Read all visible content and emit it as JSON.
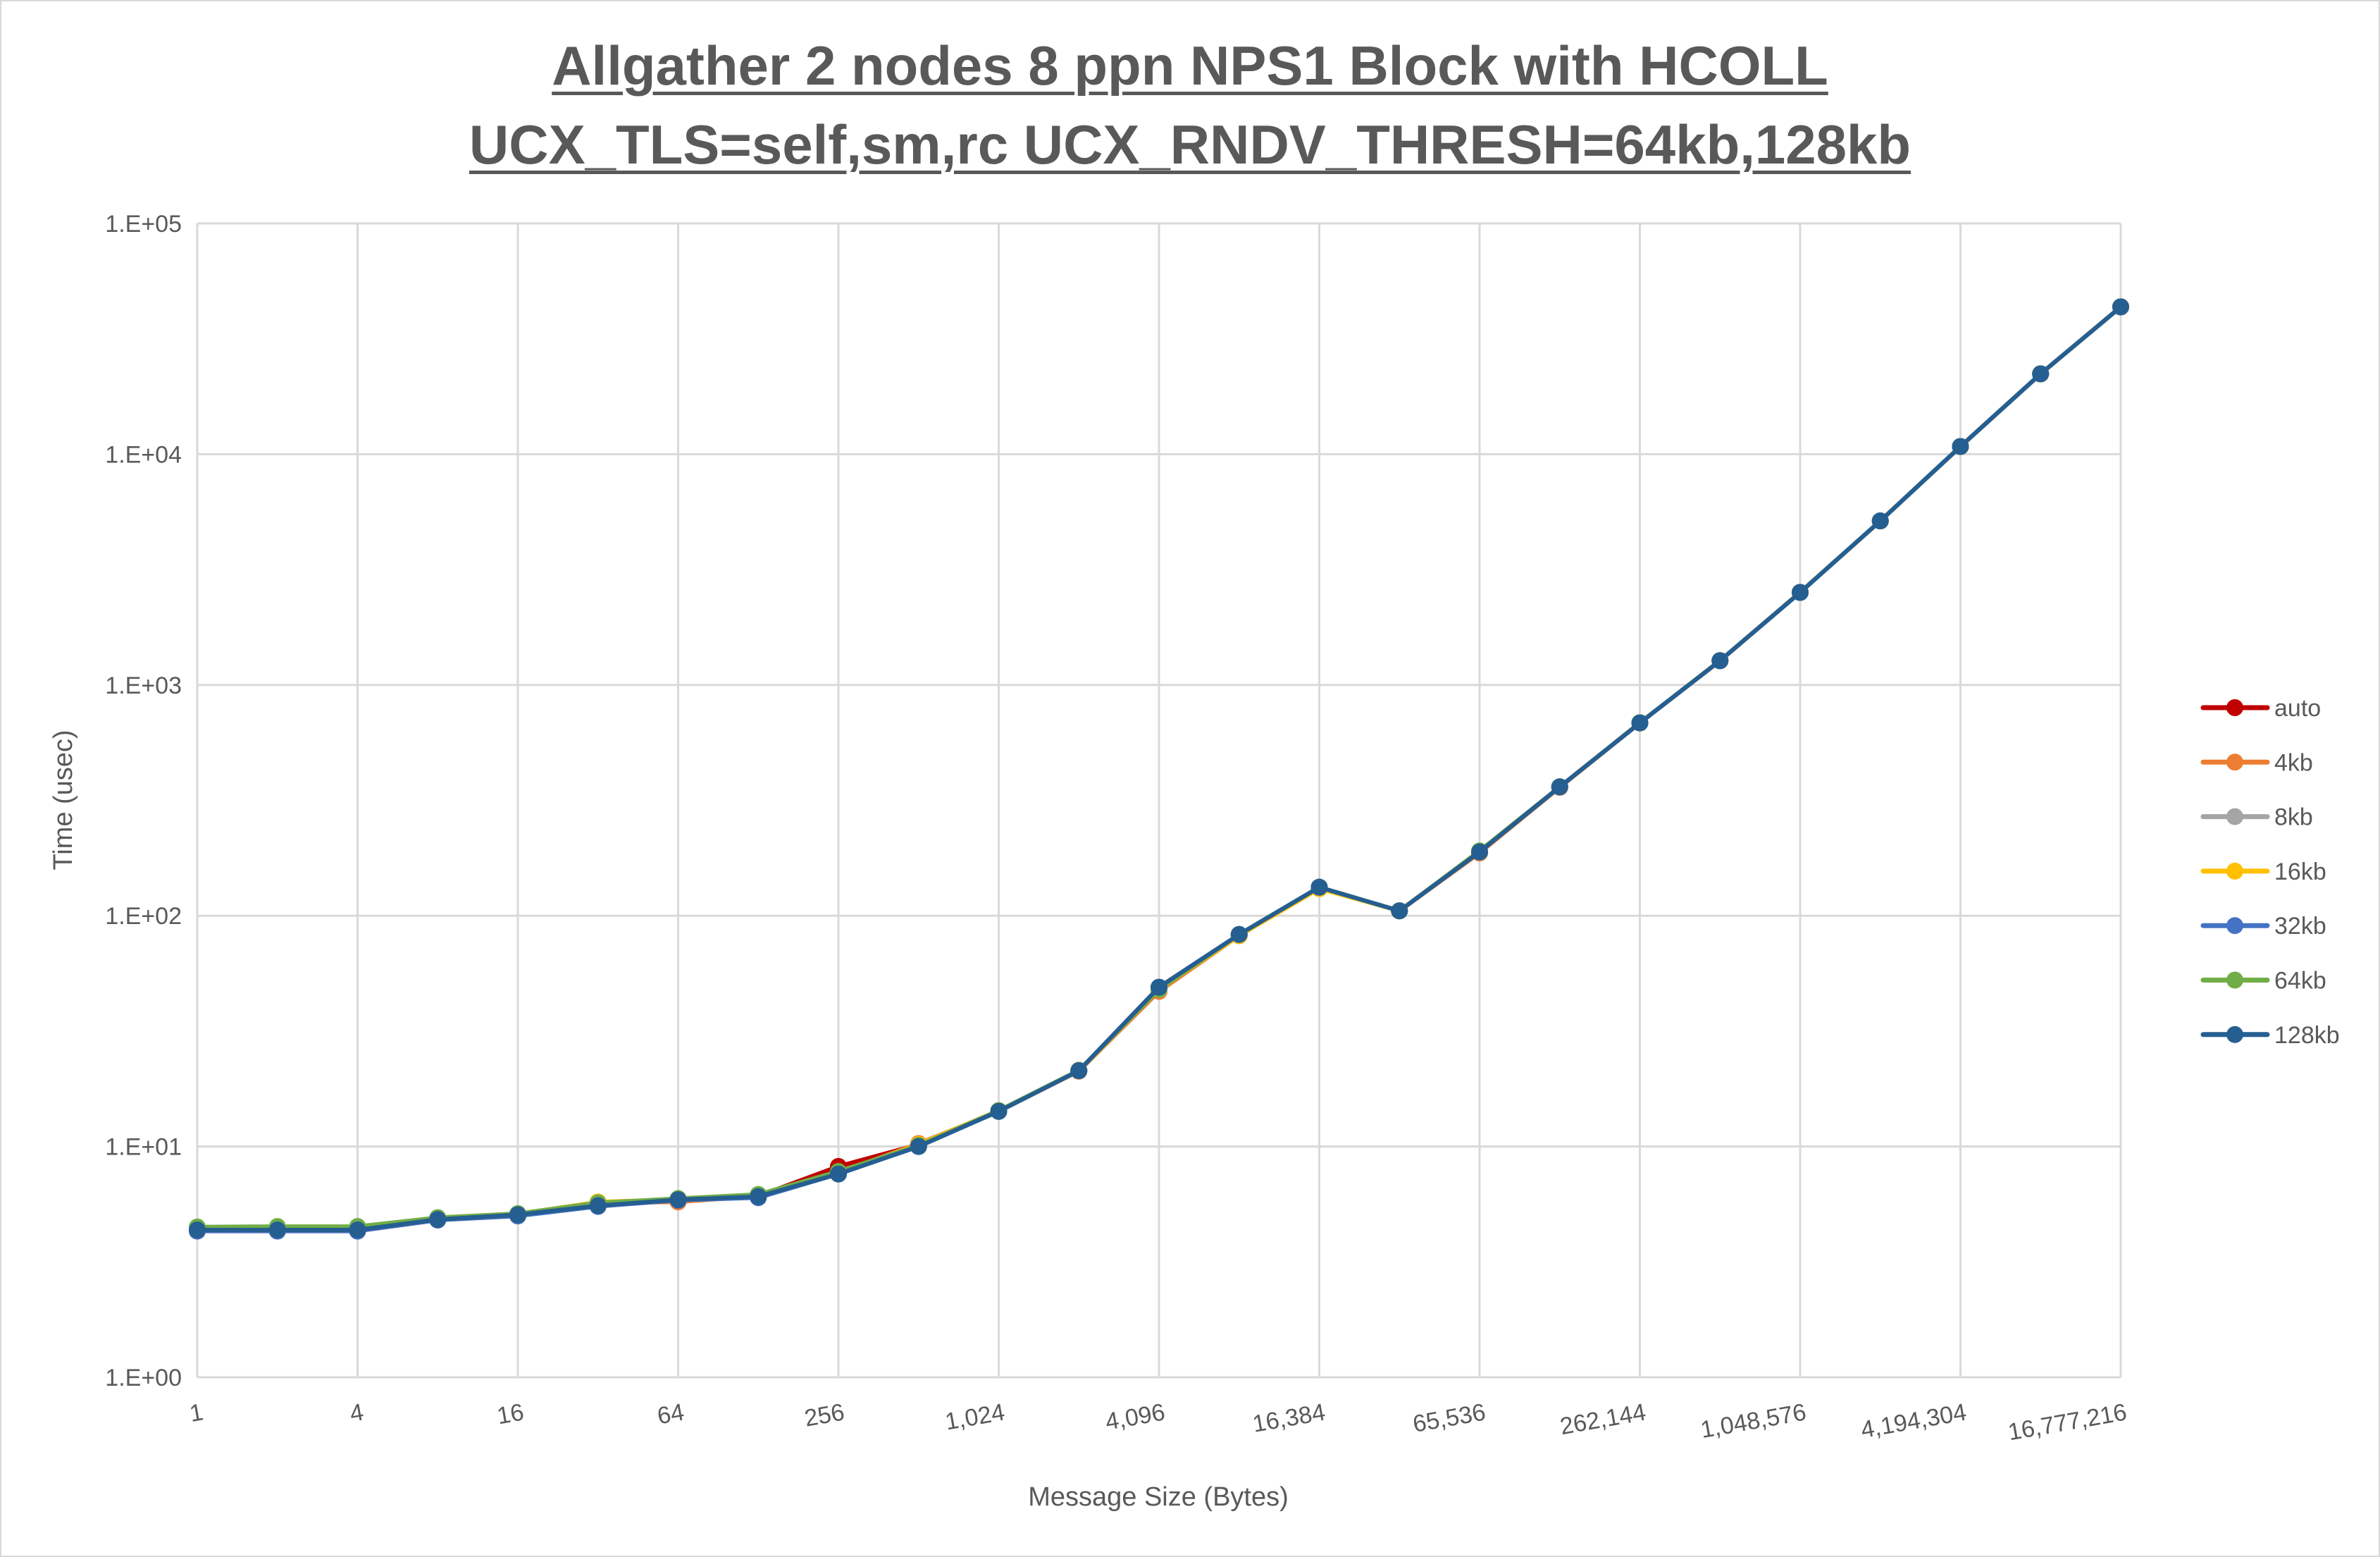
{
  "chart_data": {
    "type": "line",
    "title": [
      "Allgather 2 nodes 8 ppn NPS1 Block with HCOLL",
      "UCX_TLS=self,sm,rc UCX_RNDV_THRESH=64kb,128kb"
    ],
    "xlabel": "Message Size (Bytes)",
    "ylabel": "Time (usec)",
    "x_scale": "log2",
    "y_scale": "log10",
    "ylim": [
      1,
      100000
    ],
    "grid": true,
    "legend_position": "right",
    "x": [
      1,
      2,
      4,
      8,
      16,
      32,
      64,
      128,
      256,
      512,
      1024,
      2048,
      4096,
      8192,
      16384,
      32768,
      65536,
      131072,
      262144,
      524288,
      1048576,
      2097152,
      4194304,
      8388608,
      16777216
    ],
    "x_tick_labels": [
      "1",
      "4",
      "16",
      "64",
      "256",
      "1,024",
      "4,096",
      "16,384",
      "65,536",
      "262,144",
      "1,048,576",
      "4,194,304",
      "16,777,216"
    ],
    "y_tick_labels": [
      "1.E+00",
      "1.E+01",
      "1.E+02",
      "1.E+03",
      "1.E+04",
      "1.E+05"
    ],
    "series": [
      {
        "name": "auto",
        "color": "#c00000",
        "values": [
          4.35,
          4.35,
          4.36,
          4.85,
          5.05,
          5.6,
          5.85,
          6.1,
          8.2,
          10.2,
          14.3,
          21.3,
          48,
          82,
          132,
          105,
          188,
          360,
          685,
          1275,
          2520,
          5140,
          10800,
          22300,
          43500
        ]
      },
      {
        "name": "4kb",
        "color": "#ed7d31",
        "values": [
          4.3,
          4.3,
          4.3,
          4.8,
          5.0,
          5.7,
          5.75,
          6.1,
          7.7,
          10.3,
          14.2,
          21.2,
          47,
          82,
          132,
          105,
          187,
          360,
          684,
          1272,
          2518,
          5135,
          10790,
          22280,
          43480
        ]
      },
      {
        "name": "8kb",
        "color": "#a5a5a5",
        "values": [
          4.4,
          4.4,
          4.42,
          4.88,
          5.05,
          5.65,
          5.85,
          6.1,
          7.7,
          10.1,
          14.2,
          21.3,
          48,
          83,
          133,
          105,
          189,
          361,
          685,
          1274,
          2518,
          5140,
          10800,
          22300,
          43500
        ]
      },
      {
        "name": "16kb",
        "color": "#ffc000",
        "values": [
          4.45,
          4.45,
          4.45,
          4.9,
          5.1,
          5.75,
          5.9,
          6.15,
          7.7,
          10.2,
          14.3,
          21.3,
          48,
          82,
          131,
          105,
          190,
          362,
          686,
          1275,
          2519,
          5141,
          10801,
          22301,
          43501
        ]
      },
      {
        "name": "32kb",
        "color": "#4472c4",
        "values": [
          4.3,
          4.3,
          4.3,
          4.8,
          5.0,
          5.5,
          5.85,
          6.0,
          7.6,
          10.0,
          14.2,
          21.3,
          49,
          83,
          133,
          105,
          189,
          362,
          685,
          1274,
          2518,
          5140,
          10800,
          22300,
          43500
        ]
      },
      {
        "name": "64kb",
        "color": "#70ad47",
        "values": [
          4.48,
          4.5,
          4.5,
          4.92,
          5.12,
          5.7,
          5.95,
          6.2,
          7.8,
          10.1,
          14.3,
          21.4,
          48,
          83,
          133,
          105,
          191,
          362,
          686,
          1275,
          2519,
          5141,
          10801,
          22301,
          43501
        ]
      },
      {
        "name": "128kb",
        "color": "#255e91",
        "values": [
          4.35,
          4.35,
          4.35,
          4.83,
          5.06,
          5.54,
          5.88,
          6.07,
          7.6,
          10.0,
          14.2,
          21.3,
          49,
          83,
          133,
          105,
          189,
          362,
          685,
          1274,
          2518,
          5140,
          10800,
          22300,
          43500
        ]
      }
    ]
  }
}
